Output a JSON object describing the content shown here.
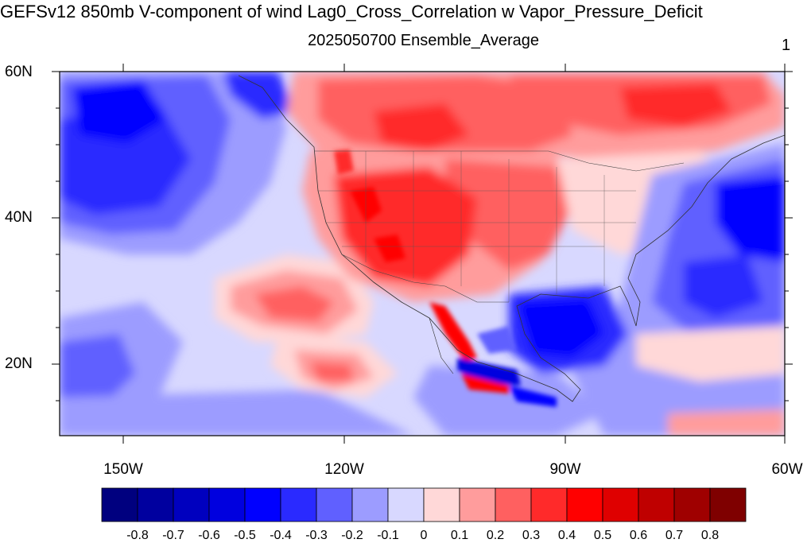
{
  "title": "GEFSv12 850mb V-component of wind Lag0_Cross_Correlation w Vapor_Pressure_Deficit",
  "subtitle": "2025050700 Ensemble_Average",
  "panel_number": "1",
  "map": {
    "projection": "cylindrical equidistant",
    "lon_range": [
      -160,
      -61
    ],
    "lat_range": [
      10,
      60
    ],
    "lat_labels": [
      "60N",
      "40N",
      "20N"
    ],
    "lon_labels": [
      "150W",
      "120W",
      "90W",
      "60W"
    ],
    "field": "correlation",
    "regions": [
      {
        "name": "north-pacific-negative",
        "value": -0.4
      },
      {
        "name": "subtropical-pacific-positive",
        "value": 0.3
      },
      {
        "name": "southwest-us-positive",
        "value": 0.5
      },
      {
        "name": "canada-positive",
        "value": 0.3
      },
      {
        "name": "gulf-of-mexico-negative",
        "value": -0.5
      },
      {
        "name": "western-atlantic-negative",
        "value": -0.4
      }
    ]
  },
  "colorbar": {
    "colors": [
      "#00007f",
      "#00009f",
      "#0000bf",
      "#0000df",
      "#0000ff",
      "#2a2aff",
      "#6060ff",
      "#9c9cff",
      "#d8d8ff",
      "#ffd8d8",
      "#ff9c9c",
      "#ff6060",
      "#ff2a2a",
      "#ff0000",
      "#df0000",
      "#bf0000",
      "#9f0000",
      "#7f0000"
    ],
    "labels": [
      "-0.8",
      "-0.7",
      "-0.6",
      "-0.5",
      "-0.4",
      "-0.3",
      "-0.2",
      "-0.1",
      "0",
      "0.1",
      "0.2",
      "0.3",
      "0.4",
      "0.5",
      "0.6",
      "0.7",
      "0.8"
    ]
  }
}
